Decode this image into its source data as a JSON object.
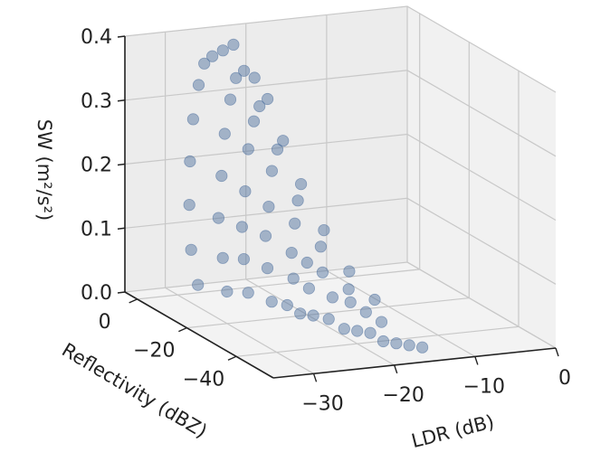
{
  "chart_data": {
    "type": "scatter",
    "projection": "3d",
    "title": "",
    "xlabel": "LDR (dB)",
    "ylabel": "Reflectivity (dBZ)",
    "zlabel": "SW (m²/s²)",
    "xlim": [
      -35,
      0
    ],
    "ylim": [
      -55,
      5
    ],
    "zlim": [
      0.0,
      0.4
    ],
    "xticks": [
      "−30",
      "−20",
      "−10",
      "0"
    ],
    "yticks": [
      "0",
      "−20",
      "−40"
    ],
    "zticks": [
      "0.0",
      "0.1",
      "0.2",
      "0.3",
      "0.4"
    ],
    "grid": true,
    "legend": "none",
    "marker_color": "#4a6d9c",
    "marker_alpha": 0.45,
    "series": [
      {
        "points_note": "",
        "x": [
          -33,
          -30,
          -28,
          -26,
          -25,
          -24,
          -23,
          -22,
          -21,
          -20,
          -19,
          -18,
          -17,
          -16,
          -15,
          -32,
          -29,
          -27,
          -25,
          -23,
          -22,
          -20,
          -19,
          -18,
          -17,
          -31,
          -28,
          -26,
          -24,
          -22,
          -21,
          -20,
          -18,
          -16,
          -30,
          -27,
          -25,
          -23,
          -21,
          -19,
          -17,
          -29,
          -26,
          -24,
          -22,
          -20,
          -18,
          -28,
          -25,
          -23,
          -21,
          -19,
          -27,
          -24,
          -22,
          -20,
          -26,
          -23,
          -21,
          -25,
          -22,
          -24
        ],
        "y": [
          -18,
          -20,
          -22,
          -25,
          -28,
          -30,
          -32,
          -35,
          -38,
          -40,
          -42,
          -44,
          -46,
          -48,
          -50,
          -12,
          -15,
          -17,
          -20,
          -24,
          -27,
          -30,
          -34,
          -37,
          -40,
          -8,
          -10,
          -13,
          -16,
          -20,
          -23,
          -26,
          -30,
          -34,
          -5,
          -8,
          -11,
          -14,
          -18,
          -22,
          -27,
          -3,
          -6,
          -9,
          -12,
          -16,
          -20,
          -2,
          -5,
          -8,
          -11,
          -14,
          -1,
          -4,
          -7,
          -10,
          -1,
          -4,
          -7,
          -2,
          -5,
          -3
        ],
        "z": [
          0.06,
          0.05,
          0.05,
          0.04,
          0.04,
          0.03,
          0.03,
          0.03,
          0.02,
          0.02,
          0.02,
          0.01,
          0.01,
          0.01,
          0.01,
          0.1,
          0.09,
          0.09,
          0.08,
          0.07,
          0.06,
          0.05,
          0.05,
          0.04,
          0.03,
          0.16,
          0.14,
          0.13,
          0.12,
          0.1,
          0.09,
          0.08,
          0.06,
          0.05,
          0.22,
          0.2,
          0.18,
          0.16,
          0.14,
          0.11,
          0.08,
          0.28,
          0.26,
          0.24,
          0.21,
          0.17,
          0.13,
          0.33,
          0.31,
          0.28,
          0.24,
          0.19,
          0.36,
          0.34,
          0.3,
          0.25,
          0.37,
          0.35,
          0.31,
          0.38,
          0.34,
          0.39
        ]
      }
    ]
  }
}
